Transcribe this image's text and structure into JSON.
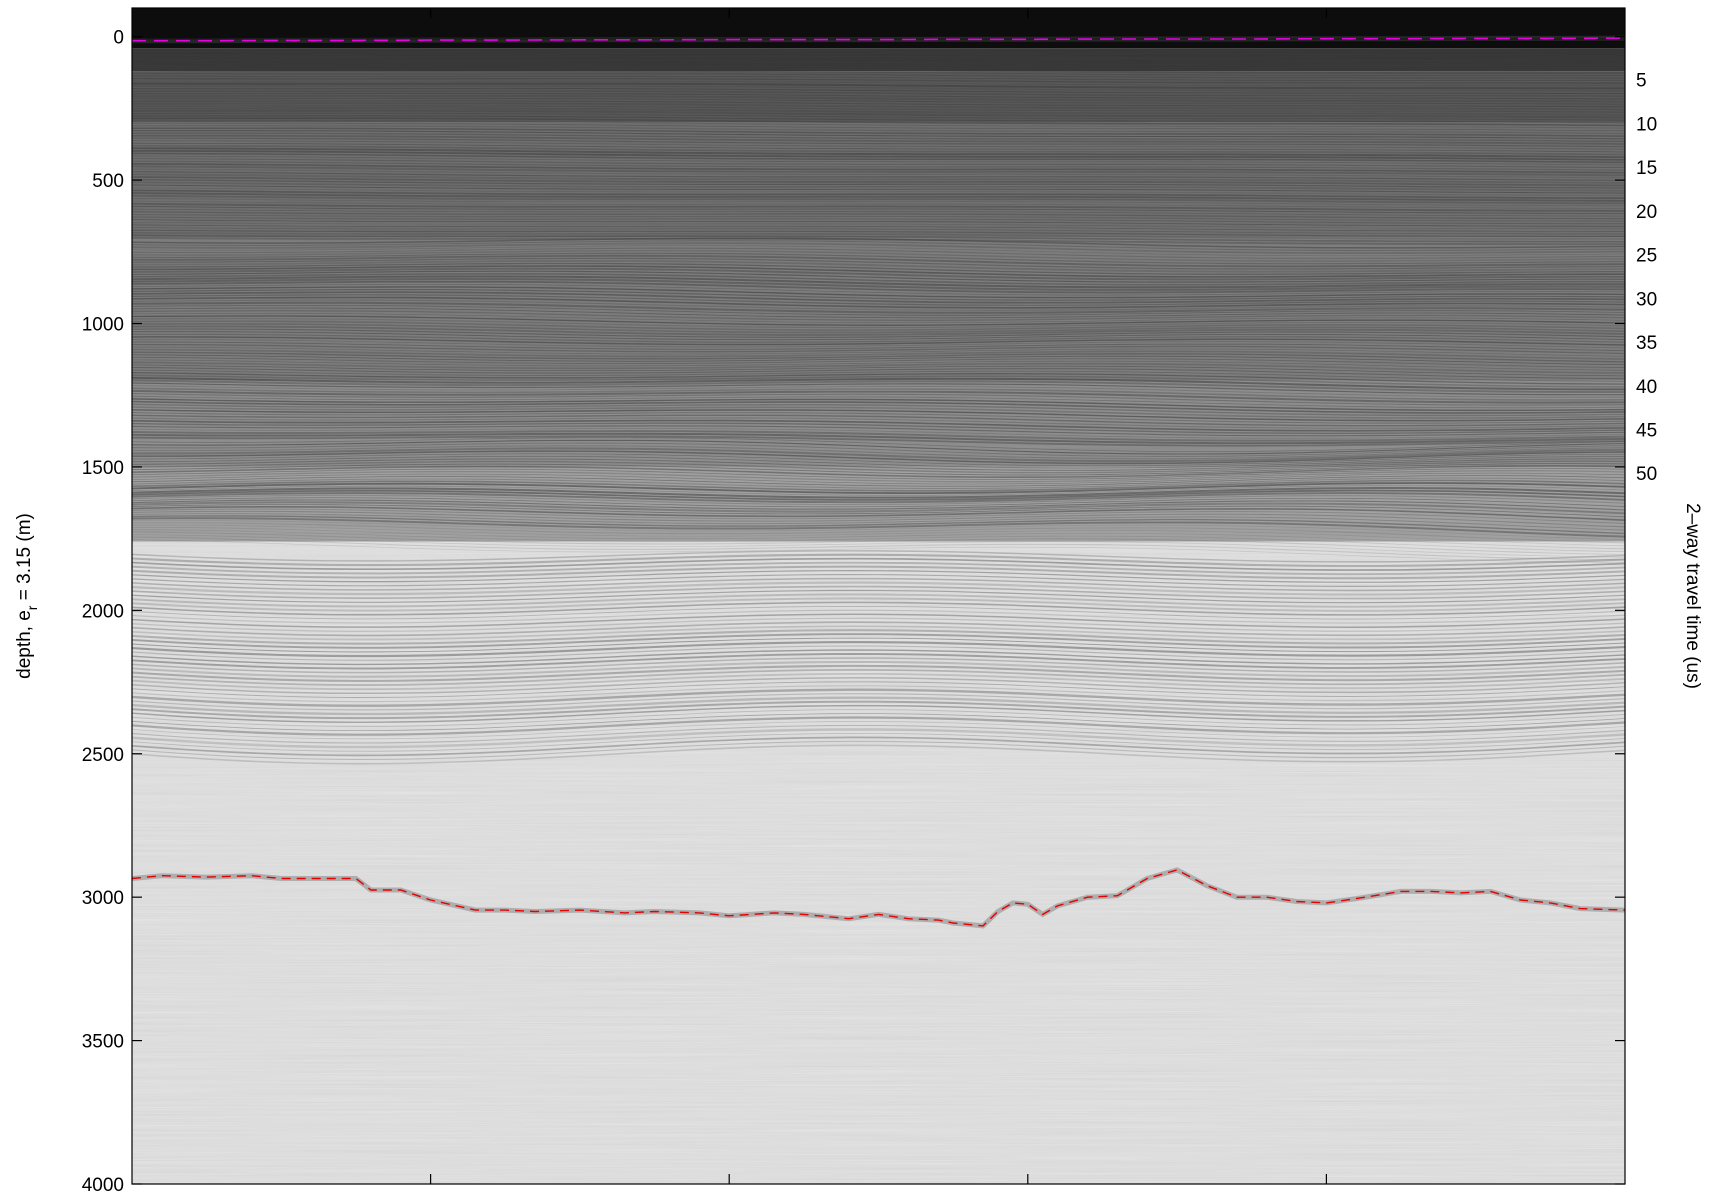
{
  "chart_data": {
    "type": "heatmap",
    "subtype": "radar echogram",
    "colormap": "grayscale (dark = strong return)",
    "title": "",
    "xlabel": "",
    "left_axis": {
      "label_prefix": "depth, e",
      "label_sub": "r",
      "label_suffix": " = 3.15 (m)",
      "range": [
        -100,
        4000
      ],
      "ticks": [
        0,
        500,
        1000,
        1500,
        2000,
        2500,
        3000,
        3500,
        4000
      ],
      "tick_labels": [
        "0",
        "500",
        "1000",
        "1500",
        "2000",
        "2500",
        "3000",
        "3500",
        "4000"
      ]
    },
    "right_axis": {
      "label": "2–way travel time (us)",
      "ticks": [
        5,
        10,
        15,
        20,
        25,
        30,
        35,
        40,
        45,
        50
      ],
      "tick_labels": [
        "5",
        "10",
        "15",
        "20",
        "25",
        "30",
        "35",
        "40",
        "45",
        "50"
      ]
    },
    "x_axis": {
      "range": [
        0,
        1
      ],
      "ticks": [
        0.2,
        0.4,
        0.6,
        0.8
      ],
      "tick_labels": []
    },
    "surface_pick": {
      "name": "surface",
      "color": "#e600e6",
      "style": "dashed",
      "x": [
        0,
        0.05,
        0.1,
        0.15,
        0.2,
        0.25,
        0.3,
        0.35,
        0.4,
        0.45,
        0.5,
        0.55,
        0.6,
        0.65,
        0.7,
        0.75,
        0.8,
        0.85,
        0.9,
        0.95,
        1.0
      ],
      "depth": [
        14,
        14,
        13,
        13,
        12,
        12,
        11,
        11,
        10,
        10,
        10,
        9,
        9,
        8,
        8,
        8,
        7,
        7,
        6,
        6,
        5
      ]
    },
    "bed_pick": {
      "name": "bed",
      "color": "#e60000",
      "style": "dashed",
      "x": [
        0,
        0.02,
        0.05,
        0.08,
        0.1,
        0.13,
        0.15,
        0.16,
        0.18,
        0.2,
        0.23,
        0.25,
        0.27,
        0.3,
        0.33,
        0.35,
        0.38,
        0.4,
        0.43,
        0.45,
        0.48,
        0.5,
        0.52,
        0.54,
        0.55,
        0.56,
        0.57,
        0.58,
        0.59,
        0.6,
        0.61,
        0.62,
        0.64,
        0.66,
        0.68,
        0.7,
        0.72,
        0.74,
        0.76,
        0.78,
        0.8,
        0.82,
        0.85,
        0.87,
        0.89,
        0.91,
        0.93,
        0.95,
        0.97,
        1.0
      ],
      "depth": [
        2935,
        2925,
        2930,
        2925,
        2935,
        2935,
        2935,
        2975,
        2975,
        3010,
        3045,
        3045,
        3050,
        3045,
        3055,
        3050,
        3055,
        3065,
        3055,
        3060,
        3075,
        3060,
        3075,
        3080,
        3090,
        3095,
        3100,
        3050,
        3020,
        3025,
        3060,
        3030,
        3000,
        2995,
        2935,
        2905,
        2960,
        3000,
        3000,
        3015,
        3020,
        3005,
        2980,
        2980,
        2985,
        2980,
        3010,
        3020,
        3040,
        3045
      ]
    },
    "grid": false,
    "legend": "none"
  }
}
